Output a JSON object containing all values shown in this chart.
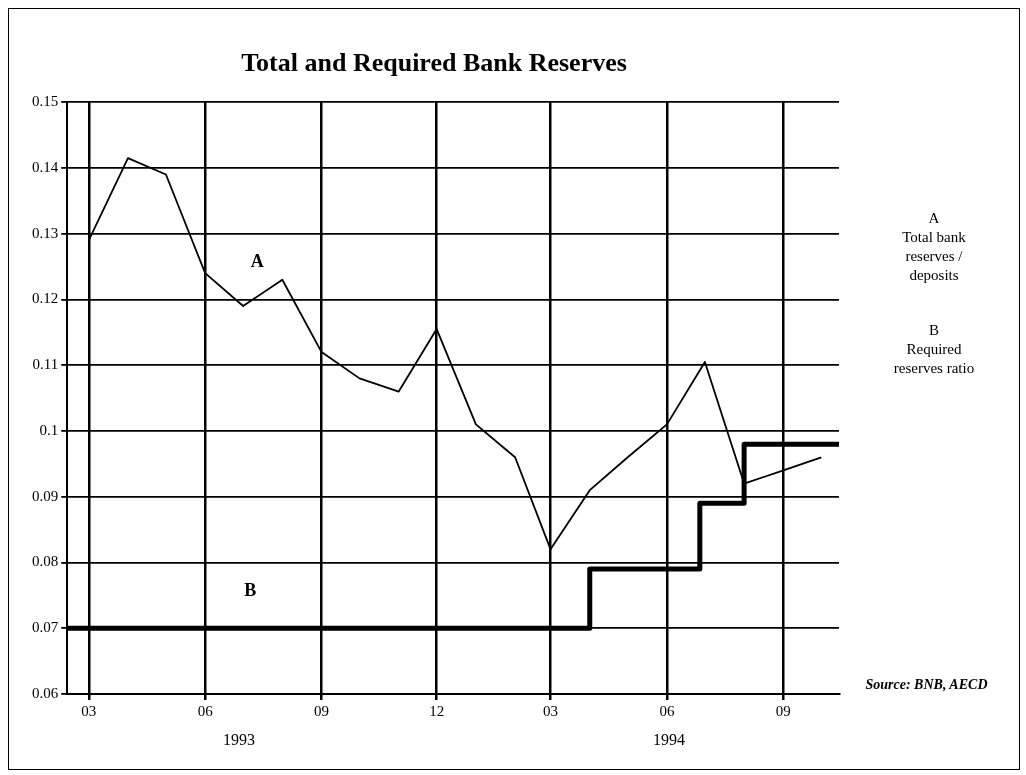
{
  "chart_data": {
    "type": "line",
    "title": "Total and Required Bank Reserves",
    "xlim": [
      "1993-02-12",
      "1994-10-15"
    ],
    "xticks": [
      {
        "value": "1993-03",
        "label": "03"
      },
      {
        "value": "1993-06",
        "label": "06"
      },
      {
        "value": "1993-09",
        "label": "09"
      },
      {
        "value": "1993-12",
        "label": "12"
      },
      {
        "value": "1994-03",
        "label": "03"
      },
      {
        "value": "1994-06",
        "label": "06"
      },
      {
        "value": "1994-09",
        "label": "09"
      }
    ],
    "ylim": [
      0.06,
      0.15
    ],
    "yticks": [
      0.06,
      0.07,
      0.08,
      0.09,
      0.1,
      0.11,
      0.12,
      0.13,
      0.14,
      0.15
    ],
    "grid": true,
    "legend": false,
    "marker": "none",
    "line_style": "solid",
    "series": [
      {
        "type": "line",
        "name": "A",
        "color": "#000000",
        "x": [
          "1993-03",
          "1993-04",
          "1993-05",
          "1993-06",
          "1993-07",
          "1993-08",
          "1993-09",
          "1993-10",
          "1993-11",
          "1993-12",
          "1994-01",
          "1994-02",
          "1994-03",
          "1994-04",
          "1994-05",
          "1994-06",
          "1994-07",
          "1994-08",
          "1994-09",
          "1994-10"
        ],
        "values": [
          0.129,
          0.1415,
          0.139,
          0.124,
          0.119,
          0.123,
          0.112,
          0.108,
          0.106,
          0.1155,
          0.101,
          0.096,
          0.082,
          0.091,
          0.096,
          0.101,
          0.1105,
          0.092,
          0.094,
          0.096
        ]
      },
      {
        "type": "step",
        "name": "B",
        "color": "#000000",
        "x": [
          "1993-02-12",
          "1994-04",
          "1994-06-27",
          "1994-08",
          "1994-10-15"
        ],
        "values": [
          0.07,
          0.079,
          0.089,
          0.098,
          0.098
        ]
      }
    ],
    "annotations": [
      "1993",
      "1994",
      "A",
      "Total bank reserves / deposits",
      "B",
      "Required reserves ratio",
      "Source: BNB, AECD"
    ]
  }
}
